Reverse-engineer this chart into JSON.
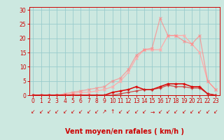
{
  "xlabel": "Vent moyen/en rafales ( km/h )",
  "xlim": [
    -0.5,
    23.5
  ],
  "ylim": [
    0,
    31
  ],
  "yticks": [
    0,
    5,
    10,
    15,
    20,
    25,
    30
  ],
  "xticks": [
    0,
    1,
    2,
    3,
    4,
    5,
    6,
    7,
    8,
    9,
    10,
    11,
    12,
    13,
    14,
    15,
    16,
    17,
    18,
    19,
    20,
    21,
    22,
    23
  ],
  "bg_color": "#cce8e0",
  "grid_color": "#99cccc",
  "line_pink1_color": "#ffaaaa",
  "line_pink2_color": "#ff8888",
  "line_red1_color": "#dd0000",
  "line_red2_color": "#cc2222",
  "pink1_x": [
    0,
    1,
    2,
    3,
    4,
    5,
    6,
    7,
    8,
    9,
    10,
    11,
    12,
    13,
    14,
    15,
    16,
    17,
    18,
    19,
    20,
    21,
    22,
    23
  ],
  "pink1_y": [
    0,
    0,
    0,
    0,
    0,
    0.5,
    1,
    1,
    1.5,
    2,
    3,
    5,
    8,
    13,
    16,
    16,
    16,
    21,
    21,
    21,
    18,
    15,
    5,
    2
  ],
  "pink2_x": [
    0,
    1,
    2,
    3,
    4,
    5,
    6,
    7,
    8,
    9,
    10,
    11,
    12,
    13,
    14,
    15,
    16,
    17,
    18,
    19,
    20,
    21,
    22,
    23
  ],
  "pink2_y": [
    0,
    0,
    0,
    0,
    0.5,
    1,
    1.5,
    2,
    2.5,
    3,
    5,
    6,
    9,
    14,
    16,
    16.5,
    27,
    21,
    21,
    19,
    18,
    21,
    5,
    2
  ],
  "red1_x": [
    0,
    1,
    2,
    3,
    4,
    5,
    6,
    7,
    8,
    9,
    10,
    11,
    12,
    13,
    14,
    15,
    16,
    17,
    18,
    19,
    20,
    21,
    22,
    23
  ],
  "red1_y": [
    0,
    0,
    0,
    0,
    0,
    0,
    0,
    0,
    0,
    0,
    1,
    1.5,
    2,
    3,
    2,
    2,
    3,
    4,
    4,
    4,
    3,
    3,
    0.5,
    0
  ],
  "red2_x": [
    0,
    1,
    2,
    3,
    4,
    5,
    6,
    7,
    8,
    9,
    10,
    11,
    12,
    13,
    14,
    15,
    16,
    17,
    18,
    19,
    20,
    21,
    22,
    23
  ],
  "red2_y": [
    0,
    0,
    0,
    0,
    0,
    0,
    0,
    0,
    0,
    0,
    0,
    0.5,
    1,
    1.5,
    2,
    2,
    2.5,
    3.5,
    3,
    3,
    2.5,
    2.5,
    0.5,
    0
  ],
  "wind_dirs": [
    "↙",
    "↙",
    "↙",
    "↙",
    "↙",
    "↙",
    "↙",
    "↙",
    "↙",
    "↗",
    "↑",
    "↙",
    "↙",
    "↙",
    "↙",
    "→",
    "↙",
    "↙",
    "↙",
    "↙",
    "↙",
    "↙",
    "↙",
    "↙"
  ]
}
